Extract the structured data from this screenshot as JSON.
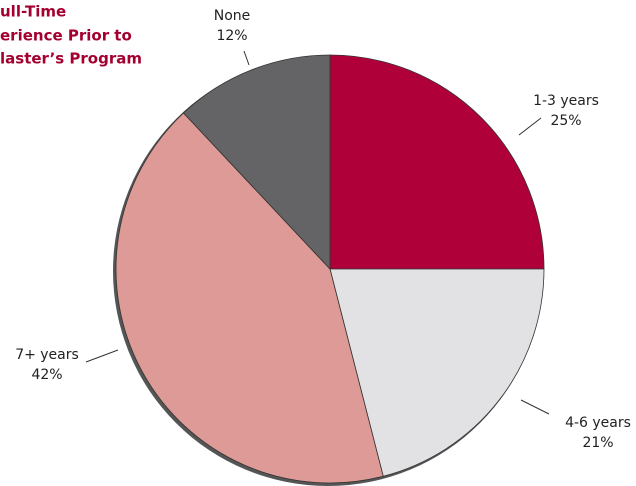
{
  "chart_data": {
    "type": "pie",
    "title_lines": [
      "ull-Time",
      "erience Prior to",
      "laster’s Program"
    ],
    "categories": [
      "1-3 years",
      "4-6 years",
      "7+ years",
      "None"
    ],
    "values": [
      25,
      21,
      42,
      12
    ],
    "value_labels": [
      "25%",
      "21%",
      "42%",
      "12%"
    ],
    "colors": [
      "#b0003a",
      "#e2e2e4",
      "#dd9a96",
      "#646466"
    ]
  }
}
